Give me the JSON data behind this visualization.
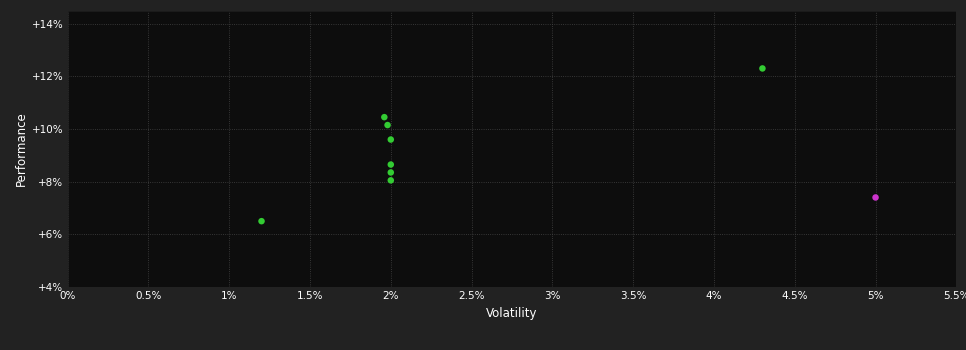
{
  "background_color": "#222222",
  "plot_bg_color": "#0d0d0d",
  "grid_color": "#444444",
  "text_color": "#ffffff",
  "xlabel": "Volatility",
  "ylabel": "Performance",
  "xlim": [
    0.0,
    0.055
  ],
  "ylim": [
    0.04,
    0.145
  ],
  "xticks": [
    0.0,
    0.005,
    0.01,
    0.015,
    0.02,
    0.025,
    0.03,
    0.035,
    0.04,
    0.045,
    0.05,
    0.055
  ],
  "xtick_labels": [
    "0%",
    "0.5%",
    "1%",
    "1.5%",
    "2%",
    "2.5%",
    "3%",
    "3.5%",
    "4%",
    "4.5%",
    "5%",
    "5.5%"
  ],
  "yticks": [
    0.04,
    0.06,
    0.08,
    0.1,
    0.12,
    0.14
  ],
  "ytick_labels": [
    "+4%",
    "+6%",
    "+8%",
    "+10%",
    "+12%",
    "+14%"
  ],
  "green_points": [
    [
      0.012,
      0.065
    ],
    [
      0.0196,
      0.1045
    ],
    [
      0.0198,
      0.1015
    ],
    [
      0.02,
      0.096
    ],
    [
      0.02,
      0.0865
    ],
    [
      0.02,
      0.0835
    ],
    [
      0.02,
      0.0805
    ],
    [
      0.043,
      0.123
    ]
  ],
  "magenta_points": [
    [
      0.05,
      0.074
    ]
  ],
  "green_color": "#33cc33",
  "magenta_color": "#cc33cc",
  "marker_size": 22,
  "tick_fontsize": 7.5,
  "label_fontsize": 8.5
}
